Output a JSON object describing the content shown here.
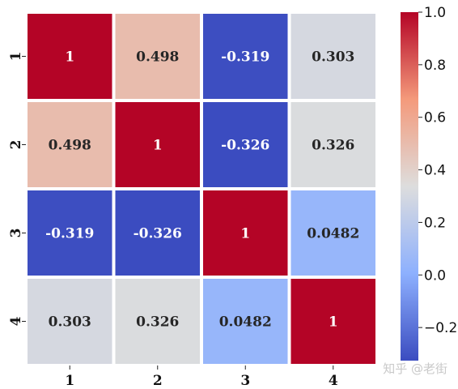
{
  "chart_data": {
    "type": "heatmap",
    "row_labels": [
      "1",
      "2",
      "3",
      "4"
    ],
    "col_labels": [
      "1",
      "2",
      "3",
      "4"
    ],
    "values": [
      [
        1,
        0.498,
        -0.319,
        0.303
      ],
      [
        0.498,
        1,
        -0.326,
        0.326
      ],
      [
        -0.319,
        -0.326,
        1,
        0.0482
      ],
      [
        0.303,
        0.326,
        0.0482,
        1
      ]
    ],
    "cell_text": [
      [
        "1",
        "0.498",
        "-0.319",
        "0.303"
      ],
      [
        "0.498",
        "1",
        "-0.326",
        "0.326"
      ],
      [
        "-0.319",
        "-0.326",
        "1",
        "0.0482"
      ],
      [
        "0.303",
        "0.326",
        "0.0482",
        "1"
      ]
    ],
    "colormap": "coolwarm",
    "vmin": -0.326,
    "vmax": 1.0,
    "colorbar_ticks": [
      1.0,
      0.8,
      0.6,
      0.4,
      0.2,
      0.0,
      -0.2
    ],
    "colorbar_tick_labels": [
      "1.0",
      "0.8",
      "0.6",
      "0.4",
      "0.2",
      "0.0",
      "−0.2"
    ]
  },
  "watermark": "知乎 @老街"
}
